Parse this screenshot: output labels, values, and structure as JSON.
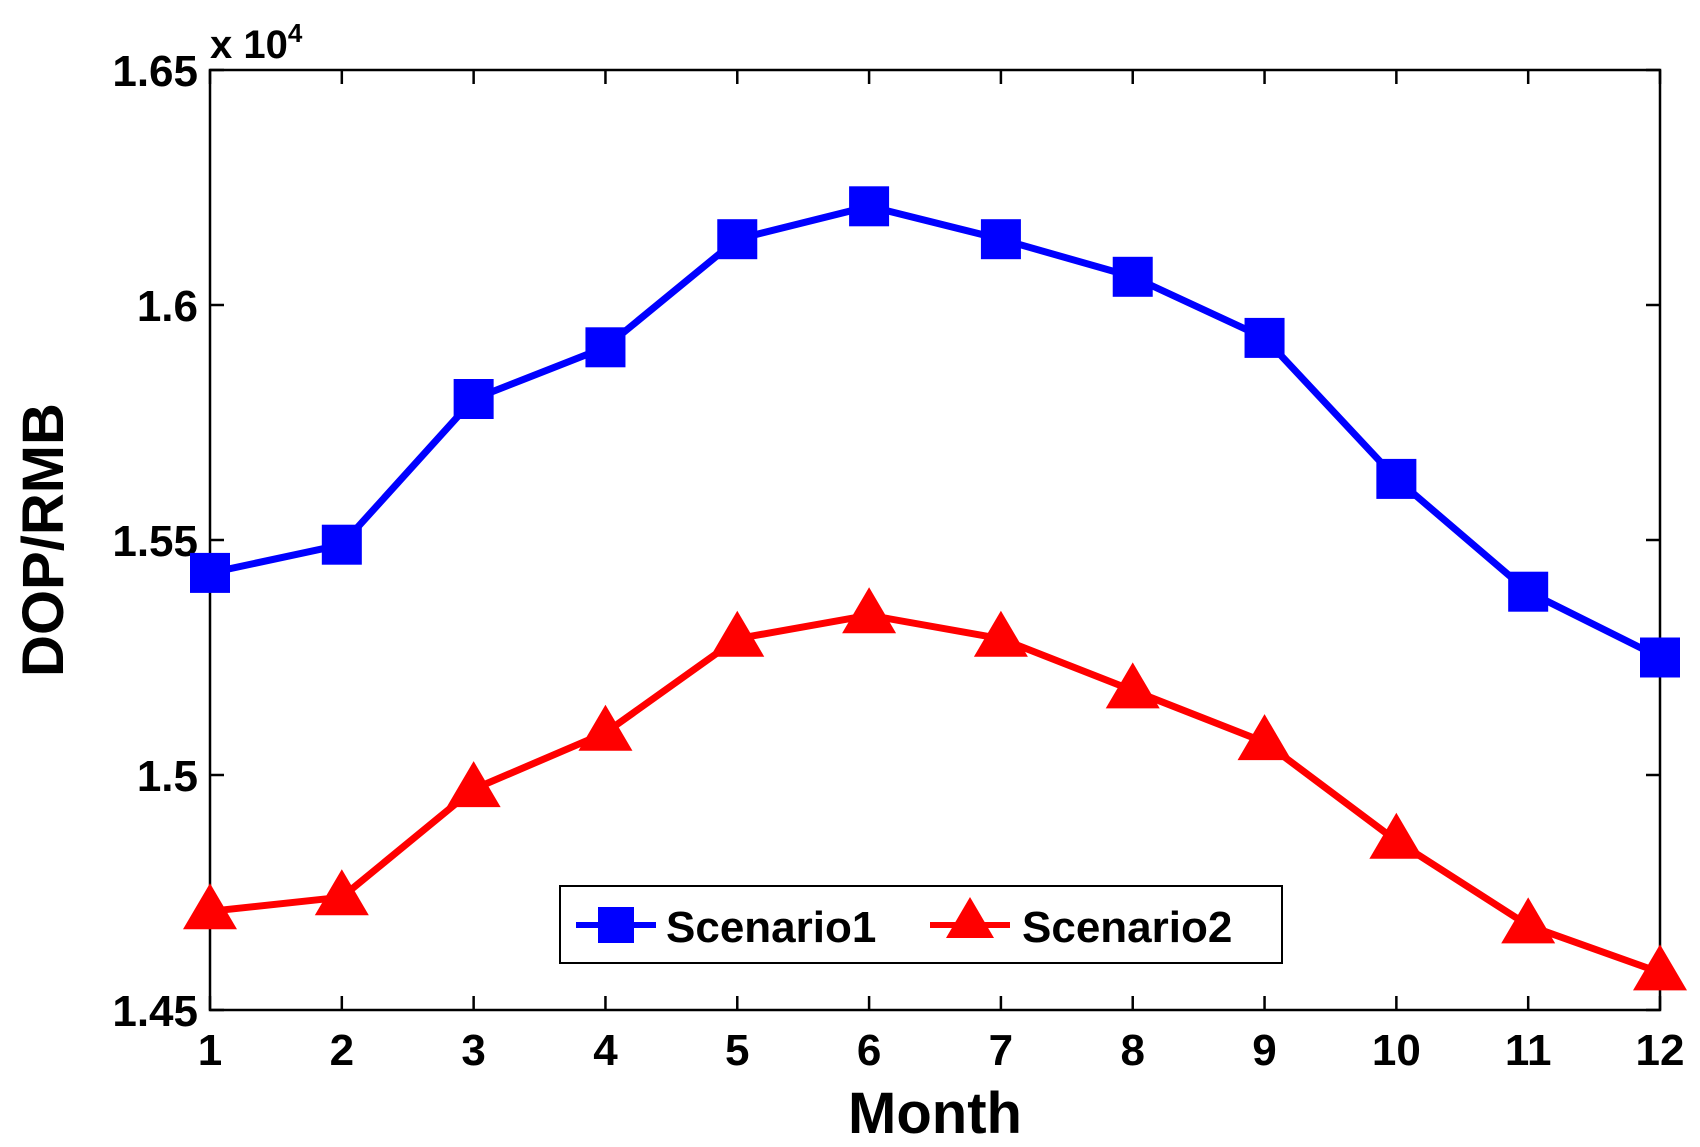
{
  "chart_data": {
    "type": "line",
    "title": "",
    "xlabel": "Month",
    "ylabel": "DOP/RMB",
    "y_scale_label": "x 10",
    "y_scale_exponent": "4",
    "categories": [
      1,
      2,
      3,
      4,
      5,
      6,
      7,
      8,
      9,
      10,
      11,
      12
    ],
    "xlim": [
      1,
      12
    ],
    "ylim": [
      1.45,
      1.65
    ],
    "yticks": [
      1.45,
      1.5,
      1.55,
      1.6,
      1.65
    ],
    "ytick_labels": [
      "1.45",
      "1.5",
      "1.55",
      "1.6",
      "1.65"
    ],
    "xtick_labels": [
      "1",
      "2",
      "3",
      "4",
      "5",
      "6",
      "7",
      "8",
      "9",
      "10",
      "11",
      "12"
    ],
    "grid": false,
    "legend_position": "bottom-center",
    "series": [
      {
        "name": "Scenario1",
        "color": "#0000ff",
        "marker": "square",
        "values": [
          1.543,
          1.549,
          1.58,
          1.591,
          1.614,
          1.621,
          1.614,
          1.606,
          1.593,
          1.563,
          1.539,
          1.525
        ]
      },
      {
        "name": "Scenario2",
        "color": "#ff0000",
        "marker": "triangle",
        "values": [
          1.471,
          1.474,
          1.497,
          1.509,
          1.529,
          1.534,
          1.529,
          1.518,
          1.507,
          1.486,
          1.468,
          1.458
        ]
      }
    ]
  }
}
